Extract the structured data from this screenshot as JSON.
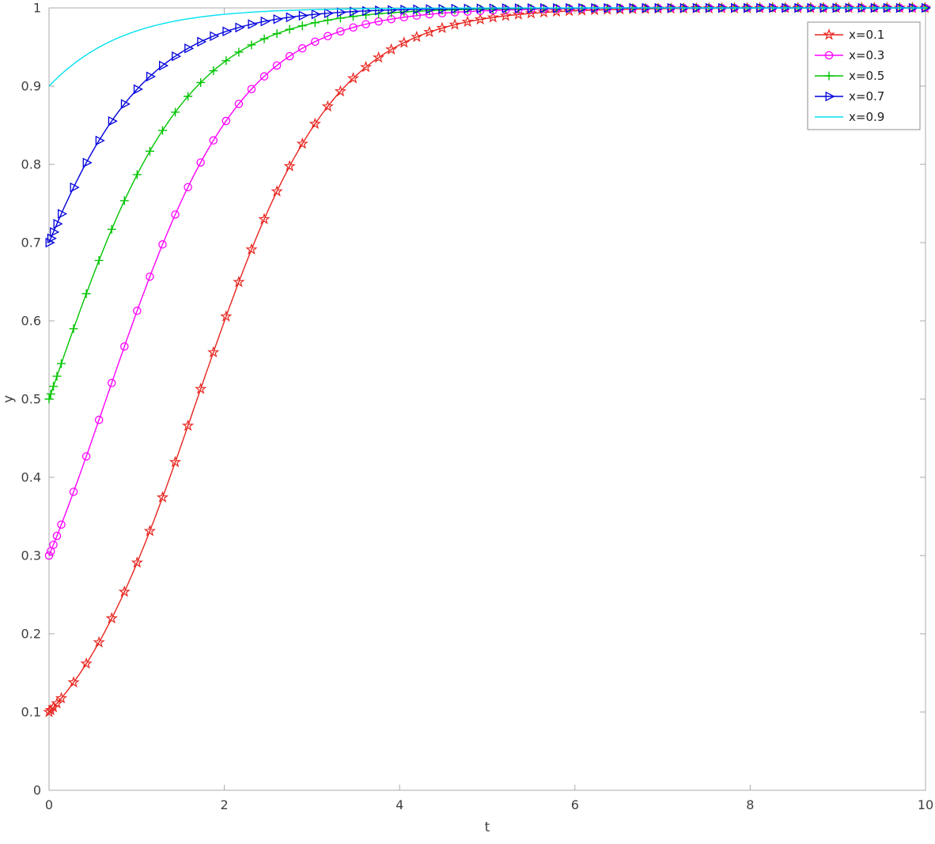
{
  "window": {
    "background": "#ffffff"
  },
  "chart_data": {
    "type": "line",
    "title": "",
    "xlabel": "t",
    "ylabel": "y",
    "xlim": [
      0,
      10
    ],
    "ylim": [
      0,
      1
    ],
    "xticks": [
      0,
      2,
      4,
      6,
      8,
      10
    ],
    "yticks": [
      0,
      0.1,
      0.2,
      0.3,
      0.4,
      0.5,
      0.6,
      0.7,
      0.8,
      0.9,
      1
    ],
    "grid": false,
    "box": true,
    "axis_color": "#ababab",
    "tick_label_color": "#404040",
    "legend": {
      "position": "northeast",
      "entries": [
        "x=0.1",
        "x=0.3",
        "x=0.5",
        "x=0.7",
        "x=0.9"
      ],
      "border_color": "#8f8f8f",
      "background": "#ffffff"
    },
    "model": {
      "type": "logistic",
      "rate": 1.3,
      "formula": "y(t) = x*exp(r*t) / (1 - x + x*exp(r*t))"
    },
    "marker_times": {
      "cluster": [
        0,
        0.02,
        0.05,
        0.09,
        0.14
      ],
      "start": 0.28,
      "step": 0.145,
      "end": 10
    },
    "series": [
      {
        "label": "x=0.1",
        "color": "#e8231d",
        "marker": "pentagram",
        "initial": 0.1,
        "t": [
          0,
          0.5,
          1,
          1.5,
          2,
          2.5,
          3,
          3.5,
          4,
          4.5,
          5,
          6,
          7,
          8,
          9,
          10
        ],
        "y": [
          0.1,
          0.176,
          0.29,
          0.439,
          0.599,
          0.741,
          0.846,
          0.913,
          0.953,
          0.975,
          0.987,
          0.996,
          0.999,
          1.0,
          1.0,
          1.0
        ]
      },
      {
        "label": "x=0.3",
        "color": "#ff00ff",
        "marker": "circle",
        "initial": 0.3,
        "t": [
          0,
          0.5,
          1,
          1.5,
          2,
          2.5,
          3,
          3.5,
          4,
          4.5,
          5,
          6,
          7,
          8,
          9,
          10
        ],
        "y": [
          0.3,
          0.451,
          0.611,
          0.751,
          0.852,
          0.917,
          0.955,
          0.976,
          0.987,
          0.993,
          0.997,
          0.999,
          1.0,
          1.0,
          1.0,
          1.0
        ]
      },
      {
        "label": "x=0.5",
        "color": "#00c400",
        "marker": "plus",
        "initial": 0.5,
        "t": [
          0,
          0.5,
          1,
          1.5,
          2,
          2.5,
          3,
          3.5,
          4,
          4.5,
          5,
          6,
          7,
          8,
          9,
          10
        ],
        "y": [
          0.5,
          0.657,
          0.786,
          0.875,
          0.931,
          0.963,
          0.98,
          0.99,
          0.995,
          0.997,
          0.999,
          1.0,
          1.0,
          1.0,
          1.0,
          1.0
        ]
      },
      {
        "label": "x=0.7",
        "color": "#0000dd",
        "marker": "triangle-right",
        "initial": 0.7,
        "t": [
          0,
          0.5,
          1,
          1.5,
          2,
          2.5,
          3,
          3.5,
          4,
          4.5,
          5,
          6,
          7,
          8,
          9,
          10
        ],
        "y": [
          0.7,
          0.817,
          0.895,
          0.943,
          0.969,
          0.984,
          0.991,
          0.996,
          0.998,
          0.999,
          0.999,
          1.0,
          1.0,
          1.0,
          1.0,
          1.0
        ]
      },
      {
        "label": "x=0.9",
        "color": "#00e0f0",
        "marker": "none",
        "initial": 0.9,
        "t": [
          0,
          0.5,
          1,
          1.5,
          2,
          2.5,
          3,
          3.5,
          4,
          4.5,
          5,
          6,
          7,
          8,
          9,
          10
        ],
        "y": [
          0.9,
          0.945,
          0.971,
          0.984,
          0.992,
          0.996,
          0.998,
          0.999,
          0.999,
          1.0,
          1.0,
          1.0,
          1.0,
          1.0,
          1.0,
          1.0
        ]
      }
    ]
  }
}
